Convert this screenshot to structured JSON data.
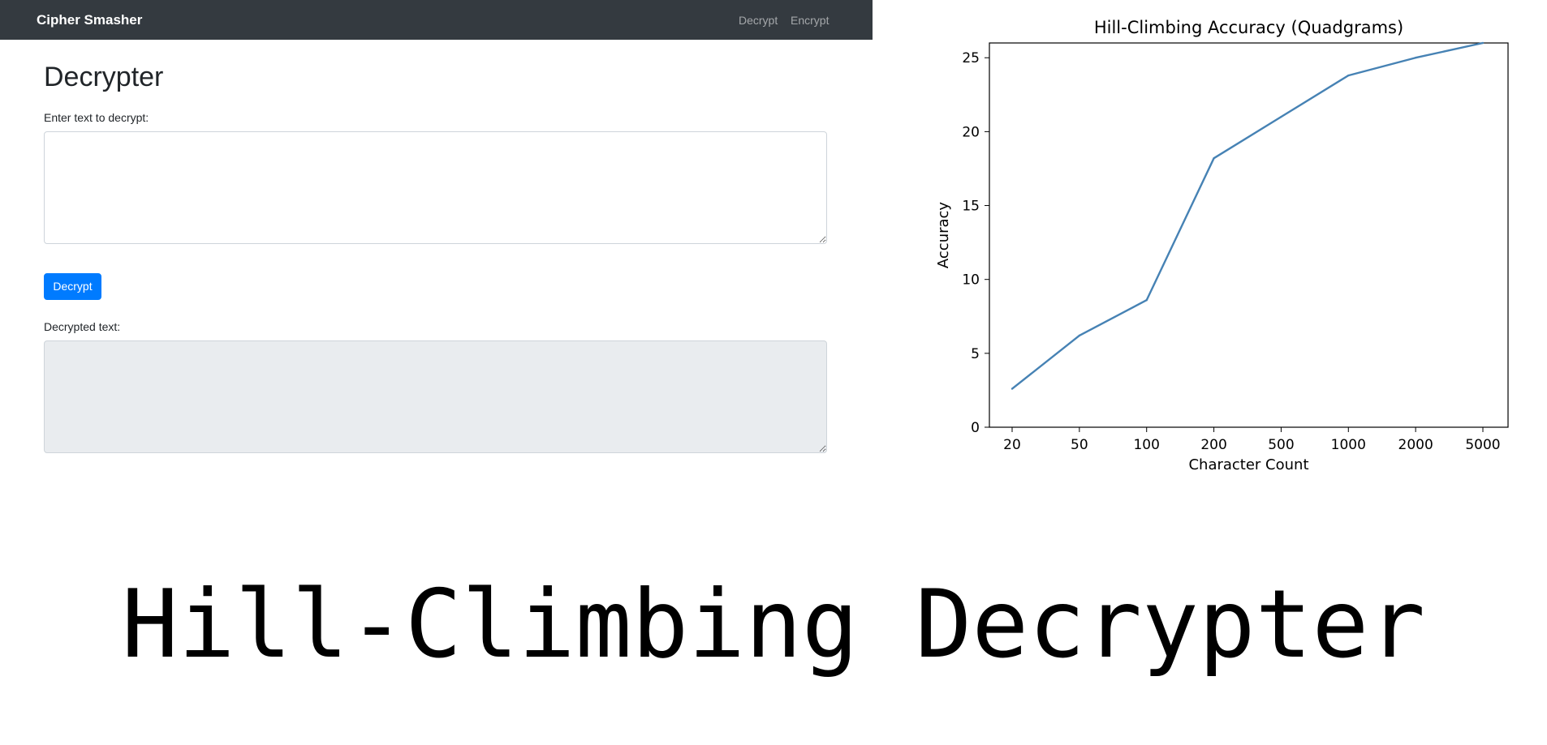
{
  "navbar": {
    "brand": "Cipher Smasher",
    "links": [
      "Decrypt",
      "Encrypt"
    ]
  },
  "main": {
    "title": "Decrypter",
    "input_label": "Enter text to decrypt:",
    "input_value": "",
    "decrypt_button": "Decrypt",
    "output_label": "Decrypted text:",
    "output_value": ""
  },
  "caption": "Hill-Climbing Decrypter",
  "colors": {
    "navbar_bg": "#343a40",
    "button_bg": "#007bff",
    "output_bg": "#e9ecef",
    "line": "#4682b4"
  },
  "chart_data": {
    "type": "line",
    "title": "Hill-Climbing Accuracy (Quadgrams)",
    "xlabel": "Character Count",
    "ylabel": "Accuracy",
    "categories": [
      "20",
      "50",
      "100",
      "200",
      "500",
      "1000",
      "2000",
      "5000"
    ],
    "values": [
      2.6,
      6.2,
      8.6,
      18.2,
      21.0,
      23.8,
      25.0,
      26.0
    ],
    "ylim": [
      0,
      26
    ],
    "yticks": [
      0,
      5,
      10,
      15,
      20,
      25
    ],
    "grid": false
  }
}
